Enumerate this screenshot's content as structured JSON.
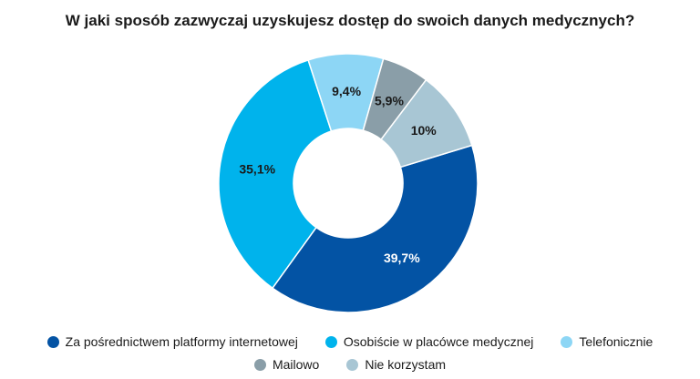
{
  "chart_data": {
    "type": "pie",
    "title": "W jaki sposób zazwyczaj uzyskujesz dostęp do swoich danych medycznych?",
    "donut": true,
    "categories": [
      "Za pośrednictwem platformy internetowej",
      "Osobiście w placówce medycznej",
      "Telefonicznie",
      "Mailowo",
      "Nie korzystam"
    ],
    "values": [
      39.7,
      35.1,
      9.4,
      5.9,
      10
    ],
    "value_labels": [
      "39,7%",
      "35,1%",
      "9,4%",
      "5,9%",
      "10%"
    ],
    "colors": [
      "#0353a4",
      "#00b3ec",
      "#8dd6f5",
      "#8a9ea8",
      "#a8c6d4"
    ],
    "label_colors": [
      "#ffffff",
      "#1a1a1a",
      "#1a1a1a",
      "#1a1a1a",
      "#1a1a1a"
    ],
    "legend_position": "bottom"
  }
}
